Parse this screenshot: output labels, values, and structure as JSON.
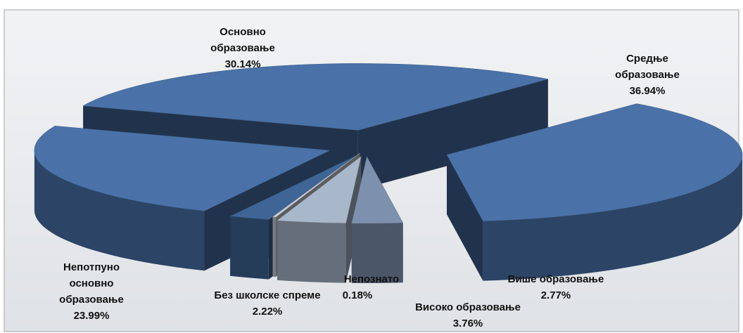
{
  "chart_data": {
    "type": "pie3d",
    "categories": [
      "Средње образовање",
      "Више образовање",
      "Високо образовање",
      "Непознато",
      "Без школске спреме",
      "Непотпуно основно образовање",
      "Основно образовање"
    ],
    "values": [
      36.94,
      2.77,
      3.76,
      0.18,
      2.22,
      23.99,
      30.14
    ],
    "value_labels": [
      "36.94%",
      "2.77%",
      "3.76%",
      "0.18%",
      "2.22%",
      "23.99%",
      "30.14%"
    ],
    "colors": [
      "#4a72a8",
      "#7d90ad",
      "#a9b7cb",
      "#c8cdd4",
      "#3f6596",
      "#4a72a8",
      "#4a72a8"
    ]
  }
}
